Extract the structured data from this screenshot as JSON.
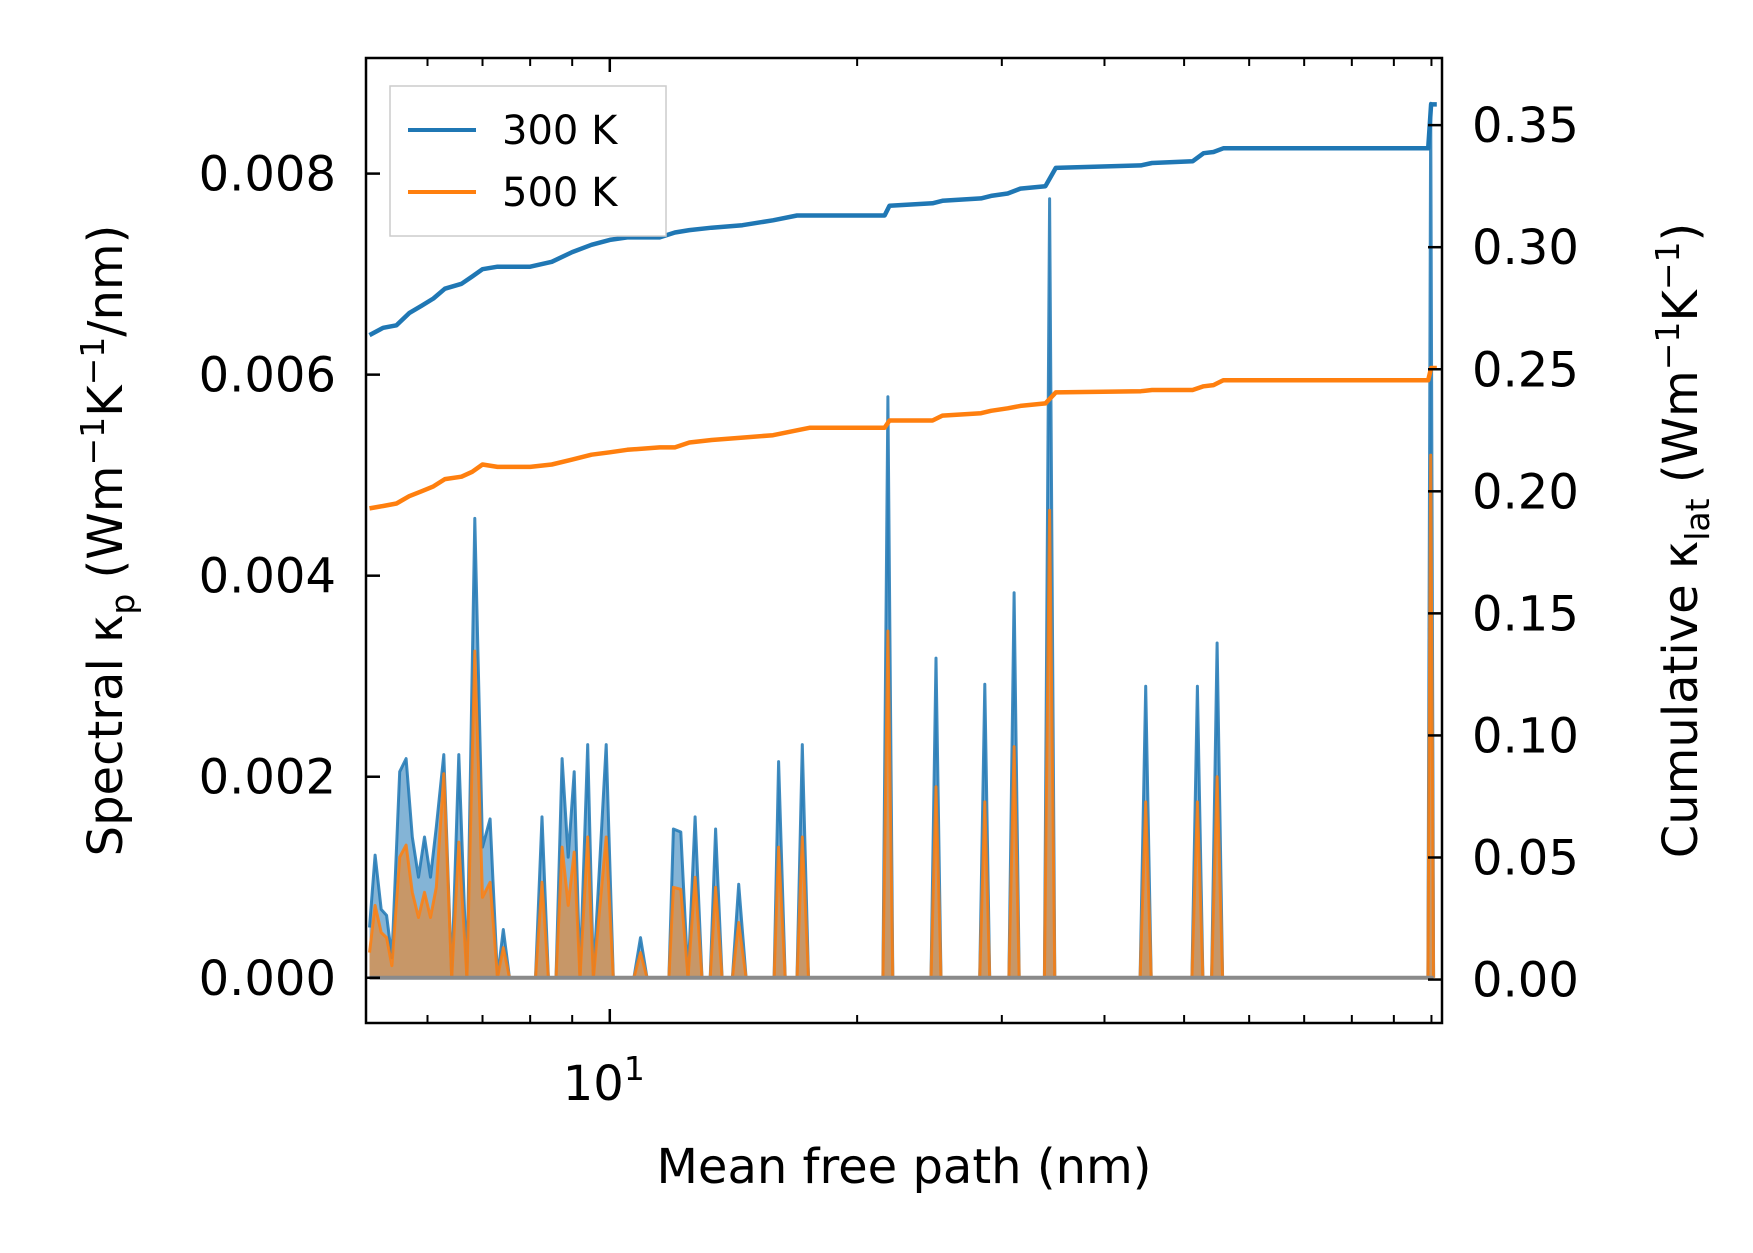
{
  "chart_data": {
    "type": "line",
    "xscale": "log",
    "xlim": [
      5.05,
      103
    ],
    "xlabel": "Mean free path (nm)",
    "x_major_tick": {
      "value": 10,
      "label_base": "10",
      "label_exp": "1"
    },
    "x_minor_ticks": [
      6,
      7,
      8,
      9,
      20,
      30,
      40,
      50,
      60,
      70,
      80,
      90,
      100
    ],
    "left_axis": {
      "label_parts": [
        "Spectral κ",
        "p",
        " (Wm",
        "−1",
        "K",
        "−1",
        "/nm)"
      ],
      "ylim": [
        -0.00045,
        0.00915
      ],
      "ticks": [
        0.0,
        0.002,
        0.004,
        0.006,
        0.008
      ],
      "tick_labels": [
        "0.000",
        "0.002",
        "0.004",
        "0.006",
        "0.008"
      ]
    },
    "right_axis": {
      "label_parts": [
        "Cumulative κ",
        "lat",
        " (Wm",
        "−1",
        "K",
        "−1",
        ")"
      ],
      "ylim": [
        -0.0178,
        0.3775
      ],
      "ticks": [
        0.0,
        0.05,
        0.1,
        0.15,
        0.2,
        0.25,
        0.3,
        0.35
      ],
      "tick_labels": [
        "0.00",
        "0.05",
        "0.10",
        "0.15",
        "0.20",
        "0.25",
        "0.30",
        "0.35"
      ]
    },
    "legend": {
      "position": "upper-left",
      "entries": [
        {
          "label": "300 K",
          "color": "#1f77b4"
        },
        {
          "label": "500 K",
          "color": "#ff7f0e"
        }
      ]
    },
    "series_spectral": [
      {
        "name": "300 K",
        "color": "#1f77b4",
        "axis": "left",
        "points": [
          [
            5.1,
            0.0005
          ],
          [
            5.18,
            0.00122
          ],
          [
            5.27,
            0.00068
          ],
          [
            5.35,
            0.00062
          ],
          [
            5.43,
            0.0002
          ],
          [
            5.55,
            0.00205
          ],
          [
            5.65,
            0.00218
          ],
          [
            5.75,
            0.0014
          ],
          [
            5.85,
            0.001
          ],
          [
            5.95,
            0.0014
          ],
          [
            6.05,
            0.001
          ],
          [
            6.15,
            0.0015
          ],
          [
            6.28,
            0.00222
          ],
          [
            6.42,
            0.0
          ],
          [
            6.55,
            0.00222
          ],
          [
            6.7,
            0.0
          ],
          [
            6.85,
            0.00457
          ],
          [
            7.0,
            0.0013
          ],
          [
            7.15,
            0.00158
          ],
          [
            7.3,
            0.0
          ],
          [
            7.42,
            0.00048
          ],
          [
            7.55,
            0.0
          ],
          [
            8.12,
            0.0
          ],
          [
            8.27,
            0.0016
          ],
          [
            8.42,
            0.0
          ],
          [
            8.6,
            0.0
          ],
          [
            8.75,
            0.00218
          ],
          [
            8.9,
            0.0012
          ],
          [
            9.05,
            0.00205
          ],
          [
            9.2,
            0.0
          ],
          [
            9.4,
            0.00232
          ],
          [
            9.55,
            0.0
          ],
          [
            9.9,
            0.00232
          ],
          [
            10.1,
            0.0
          ],
          [
            10.7,
            0.0
          ],
          [
            10.9,
            0.0004
          ],
          [
            11.1,
            0.0
          ],
          [
            11.8,
            0.0
          ],
          [
            11.95,
            0.00148
          ],
          [
            12.2,
            0.00145
          ],
          [
            12.45,
            0.0
          ],
          [
            12.7,
            0.0016
          ],
          [
            12.95,
            0.0
          ],
          [
            13.25,
            0.0
          ],
          [
            13.45,
            0.00148
          ],
          [
            13.7,
            0.0
          ],
          [
            14.1,
            0.0
          ],
          [
            14.35,
            0.00093
          ],
          [
            14.65,
            0.0
          ],
          [
            15.85,
            0.0
          ],
          [
            16.05,
            0.00215
          ],
          [
            16.35,
            0.0
          ],
          [
            16.9,
            0.0
          ],
          [
            17.15,
            0.00232
          ],
          [
            17.45,
            0.0
          ],
          [
            21.5,
            0.0
          ],
          [
            21.8,
            0.00578
          ],
          [
            22.1,
            0.0
          ],
          [
            24.6,
            0.0
          ],
          [
            24.95,
            0.00318
          ],
          [
            25.3,
            0.0
          ],
          [
            28.2,
            0.0
          ],
          [
            28.6,
            0.00292
          ],
          [
            29.0,
            0.0
          ],
          [
            30.6,
            0.0
          ],
          [
            31.05,
            0.00383
          ],
          [
            31.5,
            0.0
          ],
          [
            33.8,
            0.0
          ],
          [
            34.3,
            0.00775
          ],
          [
            34.8,
            0.0
          ],
          [
            44.2,
            0.0
          ],
          [
            44.9,
            0.0029
          ],
          [
            45.6,
            0.0
          ],
          [
            51.1,
            0.0
          ],
          [
            51.9,
            0.0029
          ],
          [
            52.7,
            0.0
          ],
          [
            54.0,
            0.0
          ],
          [
            54.85,
            0.00333
          ],
          [
            55.7,
            0.0
          ],
          [
            99.0,
            0.0
          ],
          [
            99.8,
            0.0087
          ],
          [
            100.6,
            0.0
          ]
        ]
      },
      {
        "name": "500 K",
        "color": "#ff7f0e",
        "axis": "left",
        "points": [
          [
            5.1,
            0.00025
          ],
          [
            5.18,
            0.00072
          ],
          [
            5.27,
            0.00045
          ],
          [
            5.35,
            0.0004
          ],
          [
            5.43,
            0.00012
          ],
          [
            5.55,
            0.0012
          ],
          [
            5.65,
            0.00132
          ],
          [
            5.75,
            0.00085
          ],
          [
            5.85,
            0.0006
          ],
          [
            5.95,
            0.00085
          ],
          [
            6.05,
            0.0006
          ],
          [
            6.15,
            0.0009
          ],
          [
            6.28,
            0.00203
          ],
          [
            6.42,
            0.0
          ],
          [
            6.55,
            0.00135
          ],
          [
            6.7,
            0.0
          ],
          [
            6.85,
            0.00325
          ],
          [
            7.0,
            0.0008
          ],
          [
            7.15,
            0.00095
          ],
          [
            7.3,
            0.0
          ],
          [
            7.42,
            0.0003
          ],
          [
            7.55,
            0.0
          ],
          [
            8.12,
            0.0
          ],
          [
            8.27,
            0.00095
          ],
          [
            8.42,
            0.0
          ],
          [
            8.6,
            0.0
          ],
          [
            8.75,
            0.0013
          ],
          [
            8.9,
            0.00072
          ],
          [
            9.05,
            0.00125
          ],
          [
            9.2,
            0.0
          ],
          [
            9.4,
            0.0014
          ],
          [
            9.55,
            0.0
          ],
          [
            9.9,
            0.0014
          ],
          [
            10.1,
            0.0
          ],
          [
            10.7,
            0.0
          ],
          [
            10.9,
            0.00025
          ],
          [
            11.1,
            0.0
          ],
          [
            11.8,
            0.0
          ],
          [
            11.95,
            0.0009
          ],
          [
            12.2,
            0.00088
          ],
          [
            12.45,
            0.0
          ],
          [
            12.7,
            0.001
          ],
          [
            12.95,
            0.0
          ],
          [
            13.25,
            0.0
          ],
          [
            13.45,
            0.0009
          ],
          [
            13.7,
            0.0
          ],
          [
            14.1,
            0.0
          ],
          [
            14.35,
            0.00055
          ],
          [
            14.65,
            0.0
          ],
          [
            15.85,
            0.0
          ],
          [
            16.05,
            0.0013
          ],
          [
            16.35,
            0.0
          ],
          [
            16.9,
            0.0
          ],
          [
            17.15,
            0.0014
          ],
          [
            17.45,
            0.0
          ],
          [
            21.5,
            0.0
          ],
          [
            21.8,
            0.00345
          ],
          [
            22.1,
            0.0
          ],
          [
            24.6,
            0.0
          ],
          [
            24.95,
            0.0019
          ],
          [
            25.3,
            0.0
          ],
          [
            28.2,
            0.0
          ],
          [
            28.6,
            0.00175
          ],
          [
            29.0,
            0.0
          ],
          [
            30.6,
            0.0
          ],
          [
            31.05,
            0.0023
          ],
          [
            31.5,
            0.0
          ],
          [
            33.8,
            0.0
          ],
          [
            34.3,
            0.00465
          ],
          [
            34.8,
            0.0
          ],
          [
            44.2,
            0.0
          ],
          [
            44.9,
            0.00175
          ],
          [
            45.6,
            0.0
          ],
          [
            51.1,
            0.0
          ],
          [
            51.9,
            0.00175
          ],
          [
            52.7,
            0.0
          ],
          [
            54.0,
            0.0
          ],
          [
            54.85,
            0.002
          ],
          [
            55.7,
            0.0
          ],
          [
            99.0,
            0.0
          ],
          [
            99.8,
            0.0052
          ],
          [
            100.6,
            0.0
          ]
        ]
      }
    ],
    "series_cumulative": [
      {
        "name": "300 K",
        "color": "#1f77b4",
        "axis": "right",
        "points": [
          [
            5.1,
            0.264
          ],
          [
            5.3,
            0.267
          ],
          [
            5.5,
            0.268
          ],
          [
            5.7,
            0.273
          ],
          [
            5.9,
            0.276
          ],
          [
            6.1,
            0.279
          ],
          [
            6.3,
            0.283
          ],
          [
            6.6,
            0.285
          ],
          [
            6.8,
            0.288
          ],
          [
            7.0,
            0.291
          ],
          [
            7.3,
            0.292
          ],
          [
            8.0,
            0.292
          ],
          [
            8.5,
            0.294
          ],
          [
            9.0,
            0.298
          ],
          [
            9.5,
            0.301
          ],
          [
            10.0,
            0.303
          ],
          [
            10.5,
            0.304
          ],
          [
            11.5,
            0.304
          ],
          [
            12.0,
            0.306
          ],
          [
            12.5,
            0.307
          ],
          [
            13.3,
            0.308
          ],
          [
            14.5,
            0.309
          ],
          [
            15.8,
            0.311
          ],
          [
            16.9,
            0.313
          ],
          [
            17.5,
            0.313
          ],
          [
            21.6,
            0.313
          ],
          [
            21.9,
            0.317
          ],
          [
            24.7,
            0.318
          ],
          [
            25.4,
            0.319
          ],
          [
            28.3,
            0.32
          ],
          [
            29.1,
            0.321
          ],
          [
            30.5,
            0.322
          ],
          [
            31.6,
            0.324
          ],
          [
            33.9,
            0.325
          ],
          [
            34.9,
            0.3325
          ],
          [
            44.3,
            0.3335
          ],
          [
            45.7,
            0.3345
          ],
          [
            51.2,
            0.3352
          ],
          [
            52.8,
            0.3385
          ],
          [
            54.3,
            0.339
          ],
          [
            55.8,
            0.3405
          ],
          [
            99.1,
            0.3405
          ],
          [
            99.9,
            0.3585
          ],
          [
            101.5,
            0.3585
          ]
        ]
      },
      {
        "name": "500 K",
        "color": "#ff7f0e",
        "axis": "right",
        "points": [
          [
            5.1,
            0.193
          ],
          [
            5.3,
            0.194
          ],
          [
            5.5,
            0.195
          ],
          [
            5.7,
            0.198
          ],
          [
            5.9,
            0.2
          ],
          [
            6.1,
            0.202
          ],
          [
            6.3,
            0.205
          ],
          [
            6.6,
            0.206
          ],
          [
            6.8,
            0.208
          ],
          [
            7.0,
            0.211
          ],
          [
            7.3,
            0.21
          ],
          [
            8.0,
            0.21
          ],
          [
            8.5,
            0.211
          ],
          [
            9.0,
            0.213
          ],
          [
            9.5,
            0.215
          ],
          [
            10.0,
            0.216
          ],
          [
            10.5,
            0.217
          ],
          [
            11.5,
            0.218
          ],
          [
            12.0,
            0.218
          ],
          [
            12.5,
            0.22
          ],
          [
            13.3,
            0.221
          ],
          [
            14.5,
            0.222
          ],
          [
            15.8,
            0.223
          ],
          [
            16.9,
            0.225
          ],
          [
            17.5,
            0.226
          ],
          [
            21.6,
            0.226
          ],
          [
            21.9,
            0.229
          ],
          [
            24.7,
            0.229
          ],
          [
            25.4,
            0.231
          ],
          [
            28.3,
            0.232
          ],
          [
            29.1,
            0.233
          ],
          [
            30.5,
            0.234
          ],
          [
            31.6,
            0.235
          ],
          [
            33.9,
            0.236
          ],
          [
            34.9,
            0.2405
          ],
          [
            44.3,
            0.241
          ],
          [
            45.7,
            0.2415
          ],
          [
            51.2,
            0.2415
          ],
          [
            52.8,
            0.243
          ],
          [
            54.3,
            0.2435
          ],
          [
            55.8,
            0.2455
          ],
          [
            99.1,
            0.2455
          ],
          [
            99.9,
            0.2505
          ],
          [
            101.5,
            0.2505
          ]
        ]
      }
    ]
  }
}
